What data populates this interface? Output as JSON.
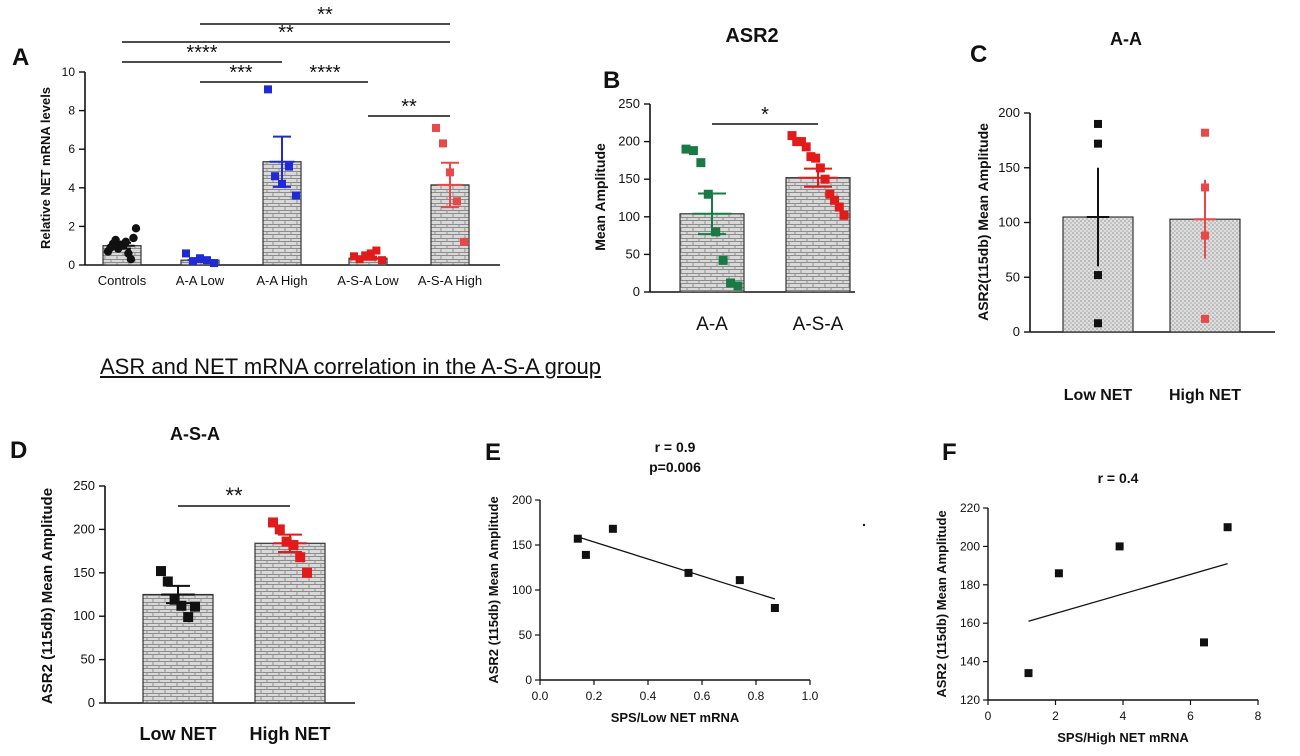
{
  "heading": "ASR and NET mRNA correlation in the A-S-A group",
  "colors": {
    "black": "#111111",
    "blue": "#1f2ad6",
    "red": "#e11b1b",
    "pink": "#e84848",
    "green": "#1a7a46",
    "bar": "#d6d6d6",
    "grid": "#8a8a8a"
  },
  "chart_data": [
    {
      "panel": "A",
      "type": "bar",
      "title": "",
      "ylabel": "Relative NET mRNA levels",
      "ylim": [
        0,
        10
      ],
      "yticks": [
        0,
        2,
        4,
        6,
        8,
        10
      ],
      "categories": [
        "Controls",
        "A-A Low",
        "A-A High",
        "A-S-A Low",
        "A-S-A High"
      ],
      "means": [
        1.0,
        0.25,
        5.35,
        0.35,
        4.15
      ],
      "errors": [
        0.15,
        0.1,
        1.3,
        0.08,
        1.15
      ],
      "colors": [
        "black",
        "blue",
        "blue",
        "red",
        "pink"
      ],
      "points": [
        [
          0.7,
          0.9,
          1.1,
          1.3,
          0.85,
          1.05,
          1.0,
          1.2,
          0.6,
          0.3,
          1.4,
          1.9
        ],
        [
          0.6,
          0.2,
          0.35,
          0.25,
          0.1
        ],
        [
          9.1,
          4.6,
          4.2,
          5.1,
          3.6
        ],
        [
          0.45,
          0.3,
          0.5,
          0.6,
          0.75,
          0.25
        ],
        [
          7.1,
          6.3,
          4.8,
          3.3,
          1.2
        ]
      ],
      "sig": [
        {
          "from": 1,
          "to": 4,
          "label": "**"
        },
        {
          "from": 0,
          "to": 4,
          "label": "**"
        },
        {
          "from": 0,
          "to": 2,
          "label": "****"
        },
        {
          "from": 1,
          "to": 2,
          "label": "***"
        },
        {
          "from": 2,
          "to": 3,
          "label": "****"
        },
        {
          "from": 3,
          "to": 4,
          "label": "**"
        }
      ]
    },
    {
      "panel": "B",
      "type": "bar",
      "title": "ASR2",
      "ylabel": "Mean Amplitude",
      "ylim": [
        0,
        250
      ],
      "yticks": [
        0,
        50,
        100,
        150,
        200,
        250
      ],
      "categories": [
        "A-A",
        "A-S-A"
      ],
      "means": [
        104,
        152
      ],
      "errors": [
        27,
        12
      ],
      "colors": [
        "green",
        "red"
      ],
      "points": [
        [
          190,
          188,
          172,
          130,
          80,
          42,
          12,
          8
        ],
        [
          208,
          200,
          200,
          193,
          180,
          178,
          165,
          150,
          130,
          122,
          113,
          102
        ]
      ],
      "sig": [
        {
          "from": 0,
          "to": 1,
          "label": "*"
        }
      ]
    },
    {
      "panel": "C",
      "type": "bar",
      "title": "A-A",
      "ylabel": "ASR2(115db) Mean Amplitude",
      "ylim": [
        0,
        200
      ],
      "yticks": [
        0,
        50,
        100,
        150,
        200
      ],
      "categories": [
        "Low NET",
        "High NET"
      ],
      "means": [
        105,
        103
      ],
      "errors": [
        45,
        36
      ],
      "colors": [
        "black",
        "pink"
      ],
      "points": [
        [
          190,
          172,
          52,
          8
        ],
        [
          182,
          132,
          88,
          12
        ]
      ],
      "sig": []
    },
    {
      "panel": "D",
      "type": "bar",
      "title": "A-S-A",
      "ylabel": "ASR2 (115db) Mean Amplitude",
      "ylim": [
        0,
        250
      ],
      "yticks": [
        0,
        50,
        100,
        150,
        200,
        250
      ],
      "categories": [
        "Low NET",
        "High NET"
      ],
      "means": [
        125,
        184
      ],
      "errors": [
        10,
        10
      ],
      "colors": [
        "black",
        "red"
      ],
      "points": [
        [
          152,
          140,
          119,
          112,
          99,
          111
        ],
        [
          208,
          200,
          186,
          182,
          168,
          150
        ]
      ],
      "sig": [
        {
          "from": 0,
          "to": 1,
          "label": "**"
        }
      ]
    },
    {
      "panel": "E",
      "type": "scatter",
      "title": "r = 0.9",
      "subtitle": "p=0.006",
      "xlabel": "SPS/Low NET mRNA",
      "ylabel": "ASR2 (115db) Mean Amplitude",
      "xlim": [
        0,
        1
      ],
      "ylim": [
        0,
        200
      ],
      "xticks": [
        0.0,
        0.2,
        0.4,
        0.6,
        0.8,
        1.0
      ],
      "xticklabels": [
        "0.0",
        "0.2",
        "0.4",
        "0.6",
        "0.8",
        "1.0"
      ],
      "yticks": [
        0,
        50,
        100,
        150,
        200
      ],
      "x": [
        0.14,
        0.17,
        0.27,
        0.55,
        0.74,
        0.87
      ],
      "y": [
        157,
        139,
        168,
        119,
        111,
        80
      ],
      "fit": [
        [
          0.14,
          159
        ],
        [
          0.87,
          90
        ]
      ]
    },
    {
      "panel": "F",
      "type": "scatter",
      "title": "r = 0.4",
      "xlabel": "SPS/High NET mRNA",
      "ylabel": "ASR2 (115db) Mean Amplitude",
      "xlim": [
        0,
        8
      ],
      "ylim": [
        120,
        220
      ],
      "xticks": [
        0,
        2,
        4,
        6,
        8
      ],
      "xticklabels": [
        "0",
        "2",
        "4",
        "6",
        "8"
      ],
      "yticks": [
        120,
        140,
        160,
        180,
        200,
        220
      ],
      "x": [
        1.2,
        2.1,
        3.9,
        6.4,
        7.1
      ],
      "y": [
        134,
        186,
        200,
        150,
        210
      ],
      "fit": [
        [
          1.2,
          161
        ],
        [
          7.1,
          191
        ]
      ]
    }
  ]
}
